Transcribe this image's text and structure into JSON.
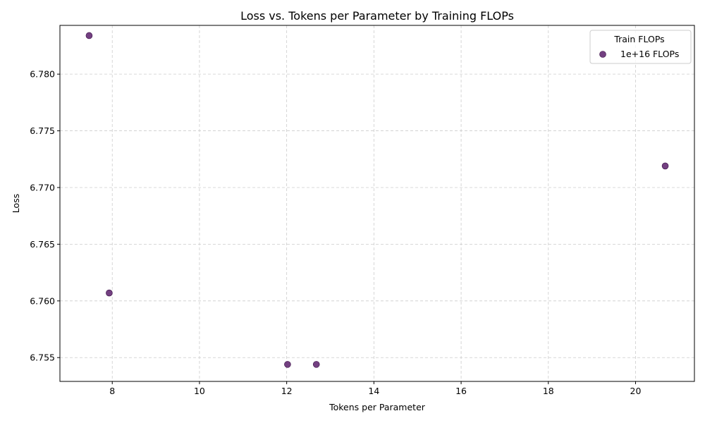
{
  "chart_data": {
    "type": "scatter",
    "title": "Loss vs. Tokens per Parameter by Training FLOPs",
    "xlabel": "Tokens per Parameter",
    "ylabel": "Loss",
    "xlim": [
      6.8,
      21.35
    ],
    "ylim": [
      6.7529,
      6.7843
    ],
    "xticks": [
      8,
      10,
      12,
      14,
      16,
      18,
      20
    ],
    "yticks": [
      6.755,
      6.76,
      6.765,
      6.77,
      6.775,
      6.78
    ],
    "ytick_labels": [
      "6.755",
      "6.760",
      "6.765",
      "6.770",
      "6.775",
      "6.780"
    ],
    "grid": true,
    "legend": {
      "title": "Train FLOPs",
      "placement": "top-right"
    },
    "series": [
      {
        "name": "1e+16 FLOPs",
        "color": "#5b1f6b",
        "points": [
          {
            "x": 7.47,
            "y": 6.7834
          },
          {
            "x": 7.93,
            "y": 6.7607
          },
          {
            "x": 12.02,
            "y": 6.7544
          },
          {
            "x": 12.68,
            "y": 6.7544
          },
          {
            "x": 20.68,
            "y": 6.7719
          }
        ]
      }
    ]
  }
}
